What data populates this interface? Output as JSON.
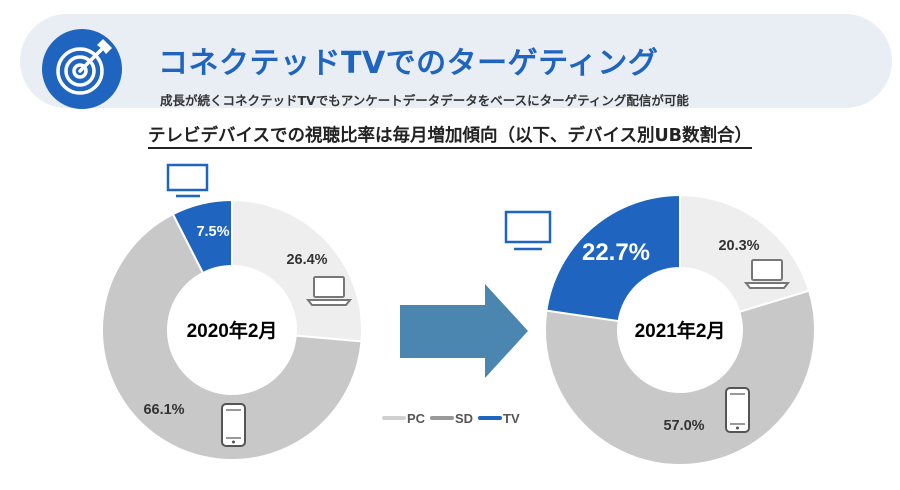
{
  "header": {
    "title": "コネクテッドTVでのターゲティング",
    "subtitle": "成長が続くコネクテッドTVでもアンケートデータデータをベースにターゲティング配信が可能",
    "icon": "target-arrow-icon"
  },
  "section_title": "テレビデバイスでの視聴比率は毎月増加傾向（以下、デバイス別UB数割合）",
  "colors": {
    "pc": "#eeeeee",
    "sd": "#c8c8c8",
    "tv": "#1f64be",
    "arrow": "#4a86b0"
  },
  "chart_data": [
    {
      "type": "pie",
      "title": "2020年2月",
      "slices": [
        {
          "name": "PC",
          "value": 26.4,
          "label": "26.4%"
        },
        {
          "name": "SD",
          "value": 66.1,
          "label": "66.1%"
        },
        {
          "name": "TV",
          "value": 7.5,
          "label": "7.5%"
        }
      ]
    },
    {
      "type": "pie",
      "title": "2021年2月",
      "slices": [
        {
          "name": "PC",
          "value": 20.3,
          "label": "20.3%"
        },
        {
          "name": "SD",
          "value": 57.0,
          "label": "57.0%"
        },
        {
          "name": "TV",
          "value": 22.7,
          "label": "22.7%"
        }
      ]
    }
  ],
  "legend": [
    {
      "name": "PC",
      "label": "PC"
    },
    {
      "name": "SD",
      "label": "SD"
    },
    {
      "name": "TV",
      "label": "TV"
    }
  ]
}
